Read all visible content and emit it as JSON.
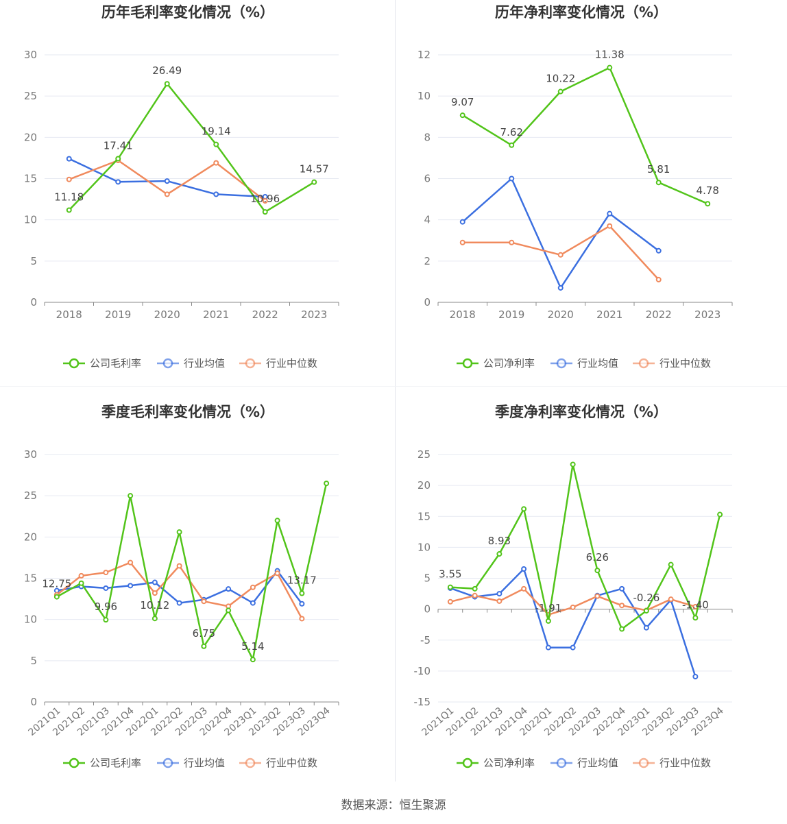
{
  "source_text": "数据来源：恒生聚源",
  "colors": {
    "company": "#52c41a",
    "industry_avg": "#3b6fe0",
    "industry_median": "#f08a5d",
    "grid": "#e6e9f2",
    "axis": "#666666"
  },
  "legend": {
    "industry_avg": "行业均值",
    "industry_median": "行业中位数"
  },
  "chart_data": [
    {
      "type": "line",
      "title": "历年毛利率变化情况（%）",
      "categories": [
        "2018",
        "2019",
        "2020",
        "2021",
        "2022",
        "2023"
      ],
      "ylim": [
        0,
        30
      ],
      "yticks": [
        0,
        5,
        10,
        15,
        20,
        25,
        30
      ],
      "grid": true,
      "legend_position": "bottom",
      "series": [
        {
          "name": "公司毛利率",
          "key": "company",
          "values": [
            11.18,
            17.41,
            26.49,
            19.14,
            10.96,
            14.57
          ]
        },
        {
          "name": "行业均值",
          "key": "industry_avg",
          "values": [
            17.4,
            14.6,
            14.7,
            13.1,
            12.8,
            null
          ]
        },
        {
          "name": "行业中位数",
          "key": "industry_median",
          "values": [
            14.9,
            17.2,
            13.1,
            16.9,
            12.3,
            null
          ]
        }
      ],
      "data_labels": [
        {
          "index": 0,
          "text": "11.18"
        },
        {
          "index": 1,
          "text": "17.41"
        },
        {
          "index": 2,
          "text": "26.49"
        },
        {
          "index": 3,
          "text": "19.14"
        },
        {
          "index": 4,
          "text": "10.96"
        },
        {
          "index": 5,
          "text": "14.57"
        }
      ]
    },
    {
      "type": "line",
      "title": "历年净利率变化情况（%）",
      "categories": [
        "2018",
        "2019",
        "2020",
        "2021",
        "2022",
        "2023"
      ],
      "ylim": [
        0,
        12
      ],
      "yticks": [
        0,
        2,
        4,
        6,
        8,
        10,
        12
      ],
      "grid": true,
      "legend_position": "bottom",
      "series": [
        {
          "name": "公司净利率",
          "key": "company",
          "values": [
            9.07,
            7.62,
            10.22,
            11.38,
            5.81,
            4.78
          ]
        },
        {
          "name": "行业均值",
          "key": "industry_avg",
          "values": [
            3.9,
            6.0,
            0.7,
            4.3,
            2.5,
            null
          ]
        },
        {
          "name": "行业中位数",
          "key": "industry_median",
          "values": [
            2.9,
            2.9,
            2.3,
            3.7,
            1.1,
            null
          ]
        }
      ],
      "data_labels": [
        {
          "index": 0,
          "text": "9.07"
        },
        {
          "index": 1,
          "text": "7.62"
        },
        {
          "index": 2,
          "text": "10.22"
        },
        {
          "index": 3,
          "text": "11.38"
        },
        {
          "index": 4,
          "text": "5.81"
        },
        {
          "index": 5,
          "text": "4.78"
        }
      ]
    },
    {
      "type": "line",
      "title": "季度毛利率变化情况（%）",
      "categories": [
        "2021Q1",
        "2021Q2",
        "2021Q3",
        "2021Q4",
        "2022Q1",
        "2022Q2",
        "2022Q3",
        "2022Q4",
        "2023Q1",
        "2023Q2",
        "2023Q3",
        "2023Q4"
      ],
      "ylim": [
        0,
        30
      ],
      "yticks": [
        0,
        5,
        10,
        15,
        20,
        25,
        30
      ],
      "grid": true,
      "legend_position": "bottom",
      "rotate_xticks": true,
      "series": [
        {
          "name": "公司毛利率",
          "key": "company",
          "values": [
            12.75,
            14.4,
            9.96,
            25.0,
            10.12,
            20.6,
            6.75,
            11.1,
            5.14,
            22.0,
            13.17,
            26.5
          ]
        },
        {
          "name": "行业均值",
          "key": "industry_avg",
          "values": [
            13.5,
            14.0,
            13.8,
            14.1,
            14.5,
            12.0,
            12.4,
            13.7,
            12.0,
            15.9,
            11.9,
            null
          ]
        },
        {
          "name": "行业中位数",
          "key": "industry_median",
          "values": [
            13.0,
            15.3,
            15.7,
            16.9,
            13.2,
            16.5,
            12.2,
            11.6,
            13.9,
            15.6,
            10.1,
            null
          ]
        }
      ],
      "data_labels": [
        {
          "index": 0,
          "text": "12.75"
        },
        {
          "index": 2,
          "text": "9.96"
        },
        {
          "index": 4,
          "text": "10.12"
        },
        {
          "index": 6,
          "text": "6.75"
        },
        {
          "index": 8,
          "text": "5.14"
        },
        {
          "index": 10,
          "text": "13.17"
        }
      ]
    },
    {
      "type": "line",
      "title": "季度净利率变化情况（%）",
      "categories": [
        "2021Q1",
        "2021Q2",
        "2021Q3",
        "2021Q4",
        "2022Q1",
        "2022Q2",
        "2022Q3",
        "2022Q4",
        "2023Q1",
        "2023Q2",
        "2023Q3",
        "2023Q4"
      ],
      "ylim": [
        -15,
        25
      ],
      "yticks": [
        -15,
        -10,
        -5,
        0,
        5,
        10,
        15,
        20,
        25
      ],
      "grid": true,
      "legend_position": "bottom",
      "rotate_xticks": true,
      "series": [
        {
          "name": "公司净利率",
          "key": "company",
          "values": [
            3.55,
            3.3,
            8.93,
            16.2,
            -1.91,
            23.4,
            6.26,
            -3.2,
            -0.26,
            7.2,
            -1.4,
            15.3
          ]
        },
        {
          "name": "行业均值",
          "key": "industry_avg",
          "values": [
            3.4,
            2.0,
            2.5,
            6.5,
            -6.2,
            -6.2,
            2.2,
            3.3,
            -3.0,
            1.5,
            -10.9,
            null
          ]
        },
        {
          "name": "行业中位数",
          "key": "industry_median",
          "values": [
            1.2,
            2.2,
            1.3,
            3.3,
            -0.9,
            0.3,
            2.1,
            0.6,
            -0.2,
            1.6,
            0.4,
            null
          ]
        }
      ],
      "data_labels": [
        {
          "index": 0,
          "text": "3.55"
        },
        {
          "index": 2,
          "text": "8.93"
        },
        {
          "index": 4,
          "text": "-1.91"
        },
        {
          "index": 6,
          "text": "6.26"
        },
        {
          "index": 8,
          "text": "-0.26"
        },
        {
          "index": 10,
          "text": "-1.40"
        }
      ]
    }
  ]
}
